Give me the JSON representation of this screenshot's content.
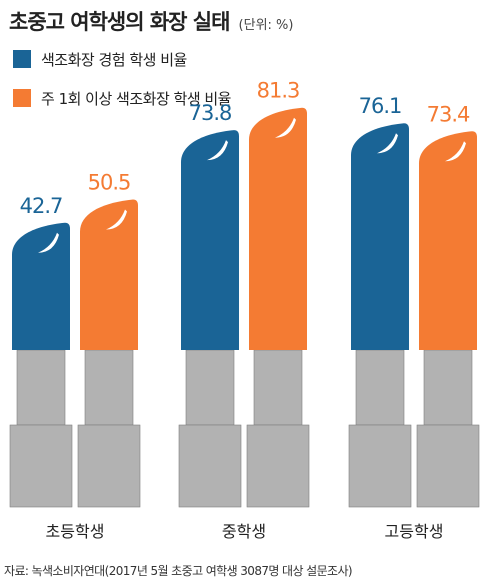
{
  "title": "초중고 여학생의 화장 실태",
  "unit": "(단위: %)",
  "source": "자료: 녹색소비자연대(2017년 5월 초중고 여학생 3087명 대상 설문조사)",
  "colors": {
    "blue": "#1a6496",
    "orange": "#f47b33",
    "tube": "#b2b2b2",
    "tube_edge": "#7f7f7f",
    "shine": "#ffffff"
  },
  "legend": [
    {
      "label": "색조화장 경험 학생 비율",
      "icon": "blue-square"
    },
    {
      "label": "주 1회 이상 색조화장 학생 비율",
      "icon": "orange-square"
    }
  ],
  "chart_data": {
    "type": "bar",
    "title": "초중고 여학생의 화장 실태",
    "categories": [
      "초등학생",
      "중학생",
      "고등학생"
    ],
    "series": [
      {
        "name": "색조화장 경험 학생 비율",
        "values": [
          42.7,
          73.8,
          76.1
        ]
      },
      {
        "name": "주 1회 이상 색조화장 학생 비율",
        "values": [
          50.5,
          81.3,
          73.4
        ]
      }
    ],
    "ylabel": "",
    "xlabel": "",
    "ylim": [
      0,
      100
    ],
    "data_labels": true,
    "grid": false,
    "legend_position": "top-left"
  }
}
